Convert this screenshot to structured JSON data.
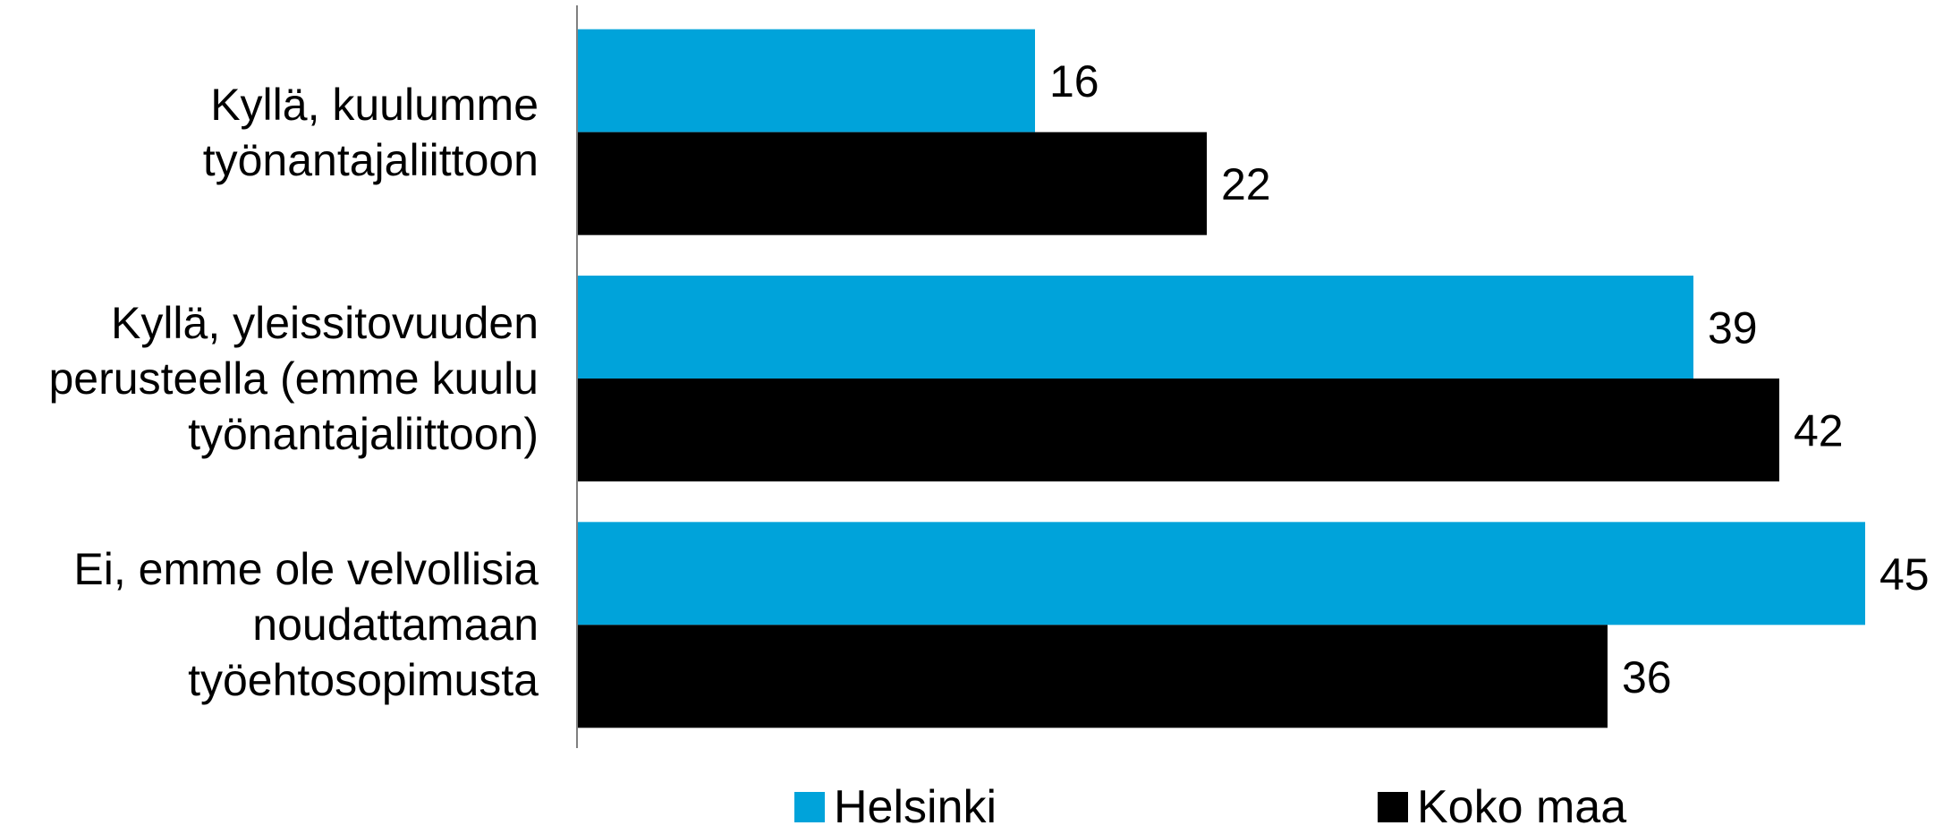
{
  "chart_data": {
    "type": "bar",
    "orientation": "horizontal",
    "categories": [
      "Kyllä, kuulumme\ntyönantajaliittoon",
      "Kyllä, yleissitovuuden\nperusteella (emme kuulu\ntyönantajaliittoon)",
      "Ei, emme ole velvollisia\nnoudattamaan\ntyöehtosopimusta"
    ],
    "series": [
      {
        "name": "Helsinki",
        "values": [
          16,
          39,
          45
        ],
        "color": "#00A3DA"
      },
      {
        "name": "Koko maa",
        "values": [
          22,
          42,
          36
        ],
        "color": "#000000"
      }
    ],
    "xlim": [
      0,
      45
    ],
    "grid": false,
    "legend_position": "bottom"
  }
}
